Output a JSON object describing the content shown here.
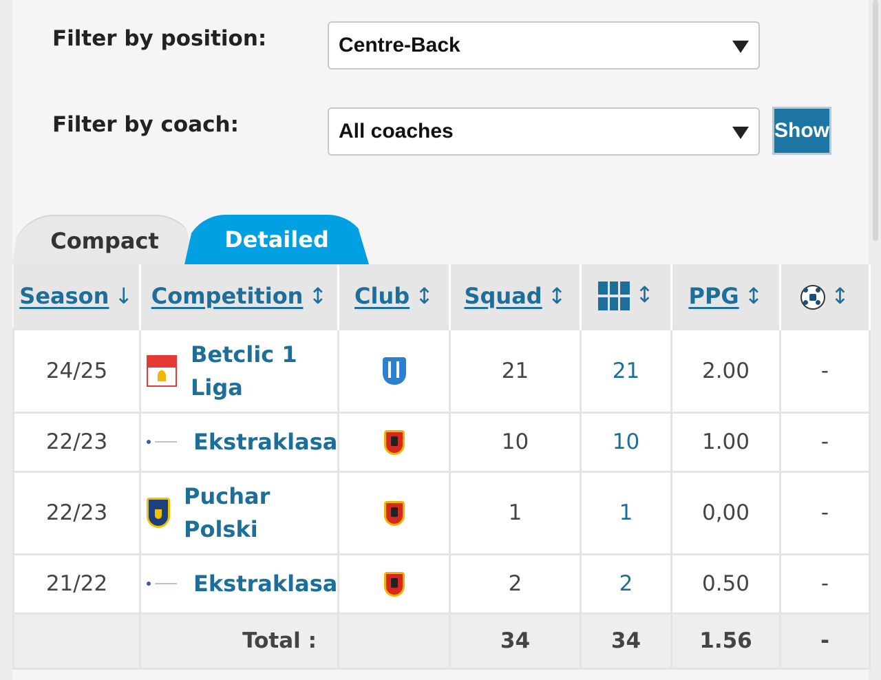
{
  "filters": {
    "position_label": "Filter by position:",
    "position_value": "Centre-Back",
    "coach_label": "Filter by coach:",
    "coach_value": "All coaches",
    "show_label": "Show"
  },
  "tabs": [
    {
      "label": "Compact",
      "active": false
    },
    {
      "label": "Detailed",
      "active": true
    }
  ],
  "table": {
    "headers": {
      "season": "Season",
      "season_sort": "↓",
      "competition": "Competition",
      "club": "Club",
      "squad": "Squad",
      "appearances_icon": "pitch-icon",
      "ppg": "PPG",
      "goals_icon": "ball-icon",
      "sort": "↕"
    },
    "rows": [
      {
        "season": "24/25",
        "competition": "Betclic 1 Liga",
        "competition_logo": "betclic-1-liga-logo",
        "club_logo": "blue-striped-crest",
        "squad": "21",
        "appearances": "21",
        "ppg": "2.00",
        "goals": "-"
      },
      {
        "season": "22/23",
        "competition": "Ekstraklasa",
        "competition_logo": "ekstraklasa-logo",
        "club_logo": "red-yellow-crest",
        "squad": "10",
        "appearances": "10",
        "ppg": "1.00",
        "goals": "-"
      },
      {
        "season": "22/23",
        "competition": "Puchar Polski",
        "competition_logo": "puchar-polski-logo",
        "club_logo": "red-yellow-crest",
        "squad": "1",
        "appearances": "1",
        "ppg": "0,00",
        "goals": "-"
      },
      {
        "season": "21/22",
        "competition": "Ekstraklasa",
        "competition_logo": "ekstraklasa-logo",
        "club_logo": "red-yellow-crest",
        "squad": "2",
        "appearances": "2",
        "ppg": "0.50",
        "goals": "-"
      }
    ],
    "total": {
      "label": "Total :",
      "squad": "34",
      "appearances": "34",
      "ppg": "1.56",
      "goals": "-"
    }
  },
  "colors": {
    "link": "#1d6f9a",
    "tab_active": "#00a0e3",
    "show_button": "#1d75a3"
  }
}
